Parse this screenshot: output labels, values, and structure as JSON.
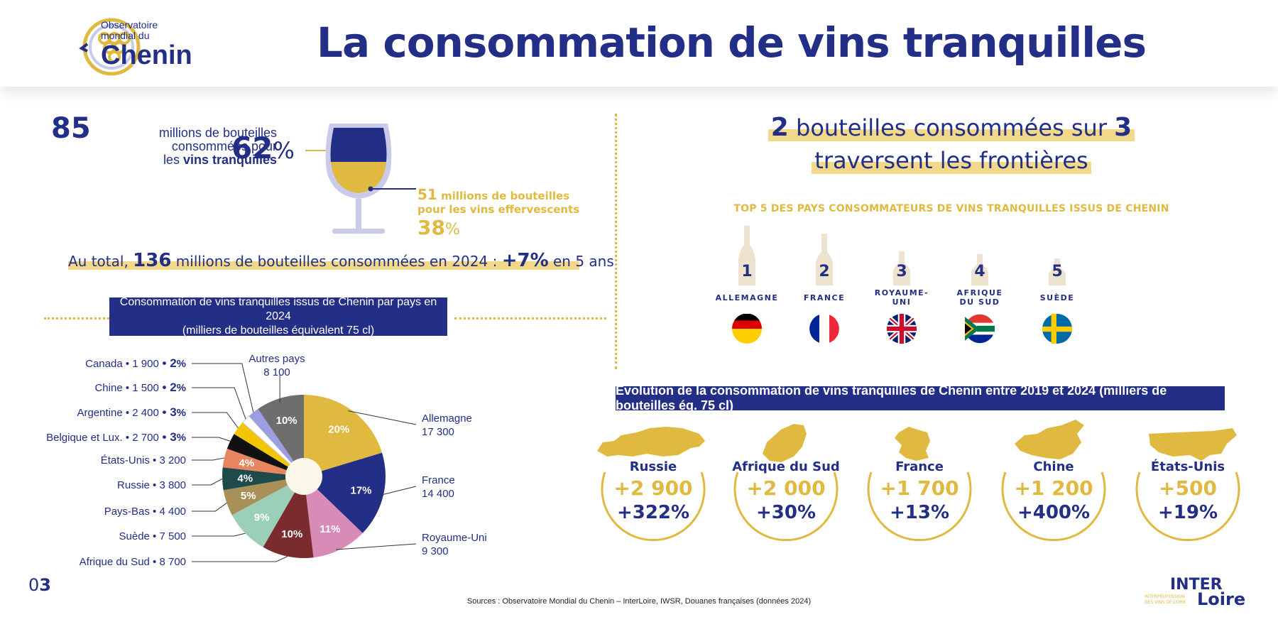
{
  "header": {
    "logo_line1": "Observatoire",
    "logo_line2": "mondial du",
    "logo_line3": "Chenin",
    "title": "La consommation de vins tranquilles"
  },
  "left_stats": {
    "still_millions": "85",
    "still_text_1": "millions de bouteilles",
    "still_text_2": "consommées pour",
    "still_text_3a": "les ",
    "still_text_3b": "vins tranquilles",
    "still_pct": "62",
    "pct_sign": "%",
    "sparkling_millions": "51",
    "sparkling_text_1": " millions de bouteilles",
    "sparkling_text_2": "pour les vins effervescents",
    "sparkling_pct": "38",
    "total_prefix": "Au total, ",
    "total_value": "136",
    "total_mid": " millions de bouteilles consommées en 2024 : ",
    "total_growth": "+7%",
    "total_suffix": " en 5 ans"
  },
  "left_banner": {
    "line1": "Consommation de vins tranquilles issus de Chenin par pays en 2024",
    "line2": "(milliers de bouteilles équivalent 75 cl)"
  },
  "chart_data": [
    {
      "type": "pie",
      "title": "Consommation de vins tranquilles issus de Chenin par pays en 2024",
      "subtitle": "(milliers de bouteilles équivalent 75 cl)",
      "slices": [
        {
          "label": "Allemagne",
          "value": 17300,
          "pct_label": "20%",
          "value_label": "17 300",
          "color": "#e0b941"
        },
        {
          "label": "France",
          "value": 14400,
          "pct_label": "17%",
          "value_label": "14 400",
          "color": "#232e86"
        },
        {
          "label": "Royaume-Uni",
          "value": 9300,
          "pct_label": "11%",
          "value_label": "9 300",
          "color": "#d98bb8"
        },
        {
          "label": "Afrique du Sud",
          "value": 8700,
          "pct_label": "10%",
          "value_label": "8 700",
          "color": "#7a2b2e"
        },
        {
          "label": "Suède",
          "value": 7500,
          "pct_label": "9%",
          "value_label": "7 500",
          "color": "#9ccfb8"
        },
        {
          "label": "Pays-Bas",
          "value": 4400,
          "pct_label": "5%",
          "value_label": "4 400",
          "color": "#a98f58"
        },
        {
          "label": "Russie",
          "value": 3800,
          "pct_label": "4%",
          "value_label": "3 800",
          "color": "#1f4a4a"
        },
        {
          "label": "États-Unis",
          "value": 3200,
          "pct_label": "4%",
          "value_label": "3 200",
          "color": "#e8845f"
        },
        {
          "label": "Belgique et Lux.",
          "value": 2700,
          "pct_label": "3%",
          "value_label": "2 700",
          "color": "#111111"
        },
        {
          "label": "Argentine",
          "value": 2400,
          "pct_label": "3%",
          "value_label": "2 400",
          "color": "#f2c500"
        },
        {
          "label": "Chine",
          "value": 1500,
          "pct_label": "2%",
          "value_label": "1 500",
          "color": "#ffffff"
        },
        {
          "label": "Canada",
          "value": 1900,
          "pct_label": "2%",
          "value_label": "1 900",
          "color": "#9b9ee0"
        },
        {
          "label": "Autres pays",
          "value": 8100,
          "pct_label": "10%",
          "value_label": "8 100",
          "color": "#6e6e6e"
        }
      ]
    }
  ],
  "right_head": {
    "num1": "2",
    "text1": " bouteilles consommées sur ",
    "num2": "3",
    "line2": "traversent les frontières"
  },
  "top5": {
    "title": "TOP 5 DES PAYS CONSOMMATEURS DE VINS TRANQUILLES ISSUS DE CHENIN",
    "countries": [
      {
        "rank": "1",
        "name_l1": "ALLEMAGNE",
        "name_l2": "",
        "flag": "germany-flag",
        "bottle_level": 1.0
      },
      {
        "rank": "2",
        "name_l1": "FRANCE",
        "name_l2": "",
        "flag": "france-flag",
        "bottle_level": 0.83
      },
      {
        "rank": "3",
        "name_l1": "ROYAUME-",
        "name_l2": "UNI",
        "flag": "uk-flag",
        "bottle_level": 0.54
      },
      {
        "rank": "4",
        "name_l1": "AFRIQUE",
        "name_l2": "DU SUD",
        "flag": "south-africa-flag",
        "bottle_level": 0.5
      },
      {
        "rank": "5",
        "name_l1": "SUÈDE",
        "name_l2": "",
        "flag": "sweden-flag",
        "bottle_level": 0.43
      }
    ]
  },
  "evolution": {
    "banner": "Évolution de la consommation de vins tranquilles de Chenin entre 2019 et 2024 (milliers de bouteilles éq. 75 cl)",
    "items": [
      {
        "country": "Russie",
        "abs": "+2 900",
        "pct": "+322%",
        "map": "russia-map-icon"
      },
      {
        "country": "Afrique du Sud",
        "abs": "+2 000",
        "pct": "+30%",
        "map": "south-africa-map-icon"
      },
      {
        "country": "France",
        "abs": "+1 700",
        "pct": "+13%",
        "map": "france-map-icon"
      },
      {
        "country": "Chine",
        "abs": "+1 200",
        "pct": "+400%",
        "map": "china-map-icon"
      },
      {
        "country": "États-Unis",
        "abs": "+500",
        "pct": "+19%",
        "map": "usa-map-icon"
      }
    ]
  },
  "footer": {
    "page_prefix": "0",
    "page_num": "3",
    "sources": "Sources : Observatoire Mondial du Chenin – InterLoire, IWSR, Douanes françaises (données 2024)",
    "brand_l1": "INTER",
    "brand_l2": "Loire",
    "brand_small1": "INTERPROFESSION",
    "brand_small2": "DES VINS DE LOIRE"
  },
  "colors": {
    "navy": "#232e86",
    "gold": "#e0b941",
    "highlight": "#f2d98a"
  }
}
